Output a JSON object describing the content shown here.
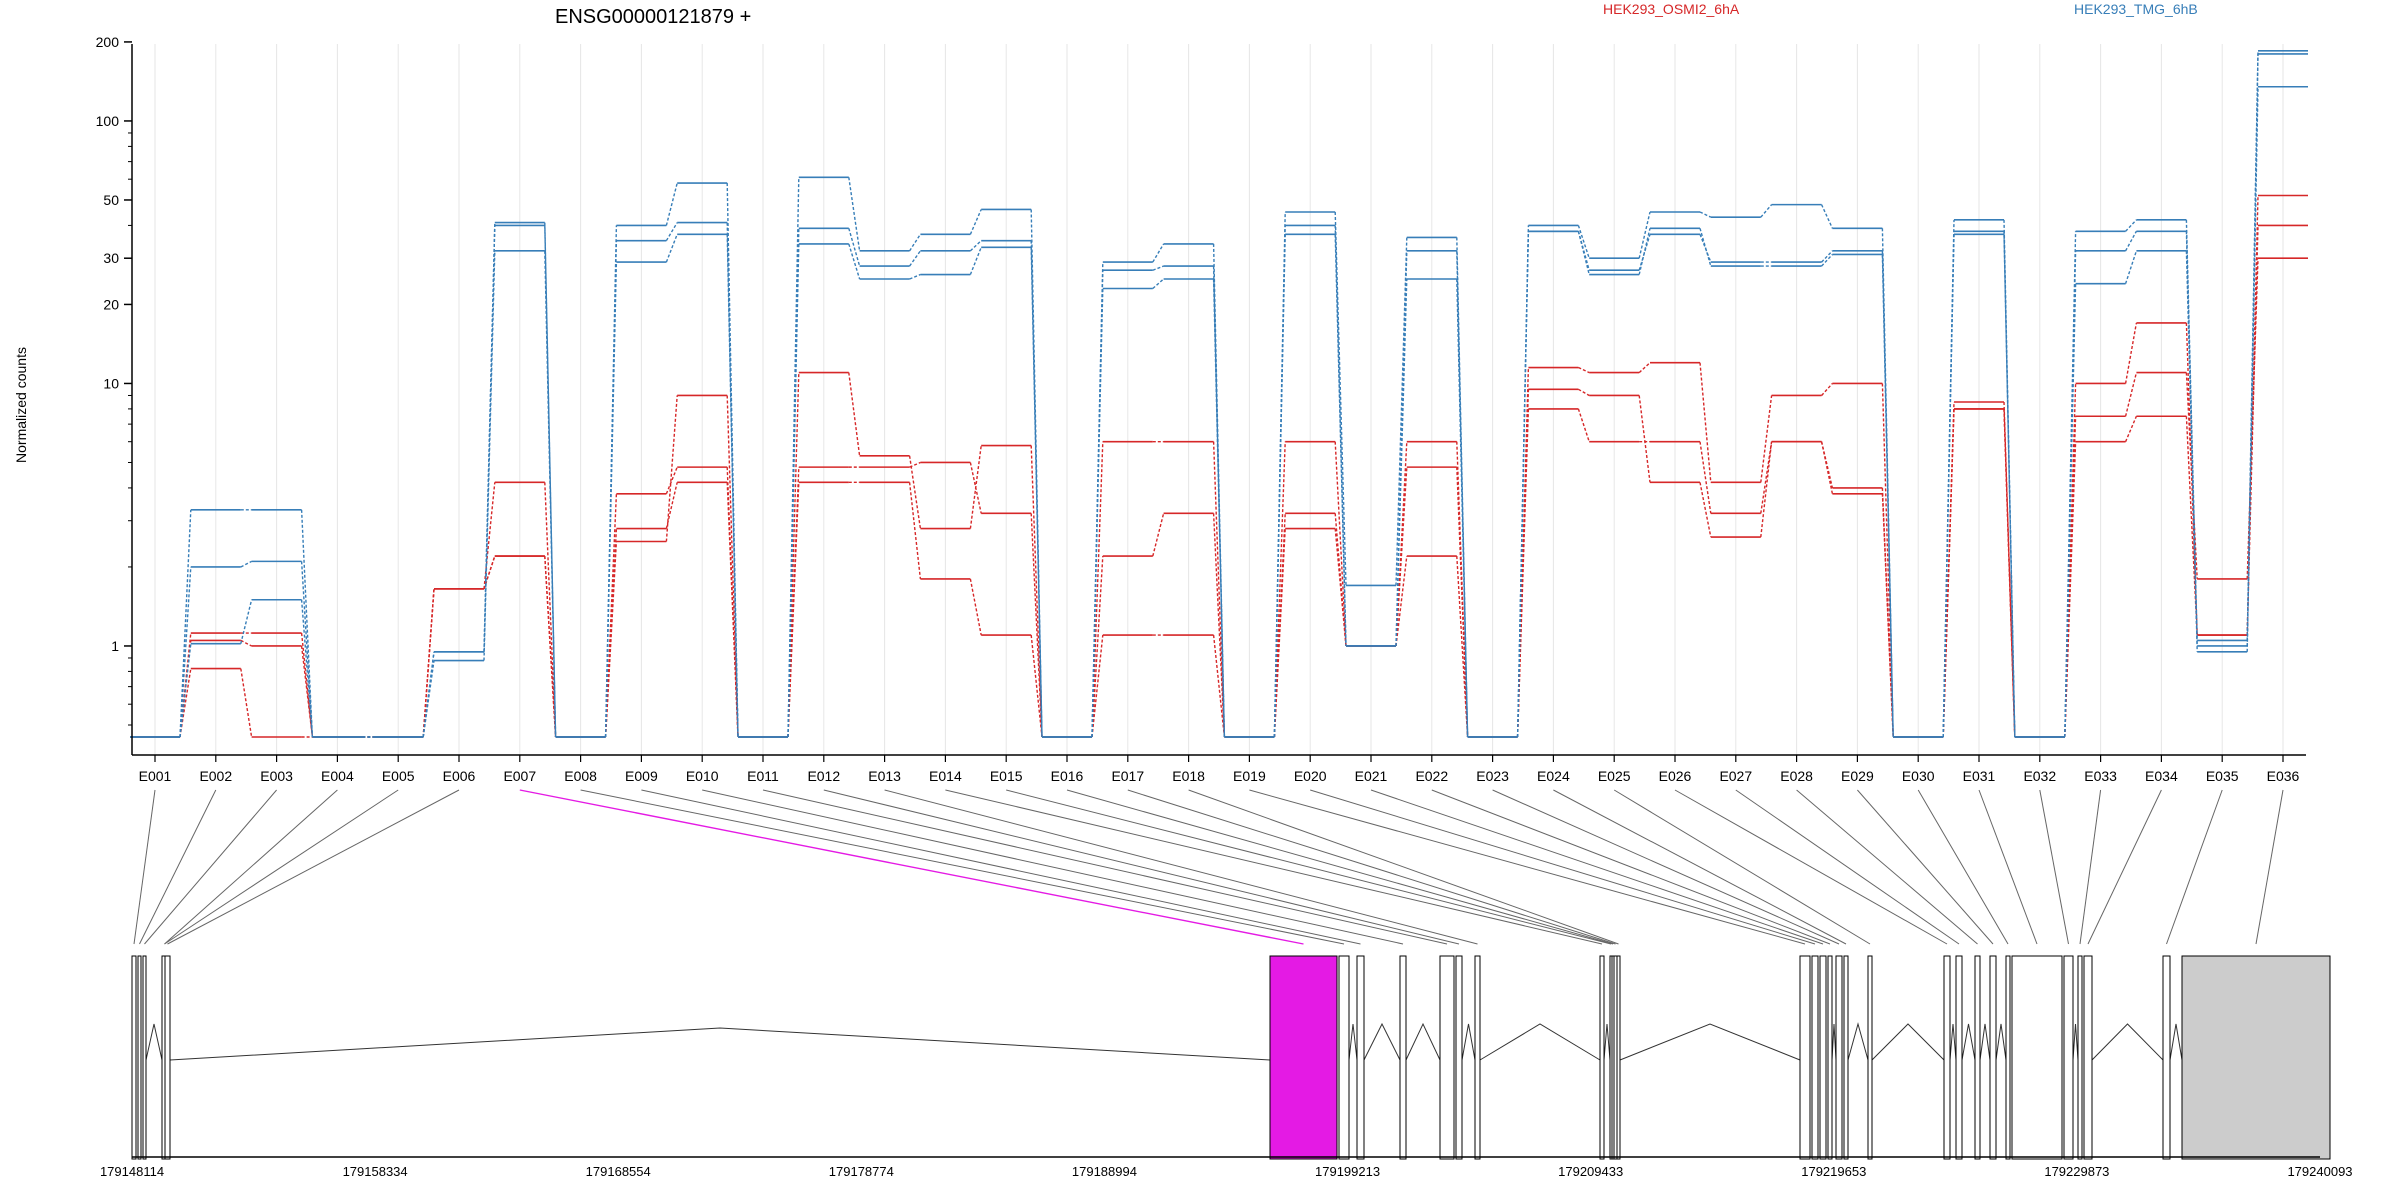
{
  "chart_data": {
    "type": "line",
    "title": "ENSG00000121879 +",
    "ylabel": "Normalized counts",
    "yscale": "log",
    "ylim": [
      0.45,
      230
    ],
    "yticks": [
      1,
      10,
      20,
      30,
      50,
      100,
      200
    ],
    "grid": "vertical",
    "legend": [
      {
        "name": "HEK293_OSMI2_6hA",
        "color": "#d62728"
      },
      {
        "name": "HEK293_TMG_6hB",
        "color": "#377eb8"
      }
    ],
    "categories": [
      "E001",
      "E002",
      "E003",
      "E004",
      "E005",
      "E006",
      "E007",
      "E008",
      "E009",
      "E010",
      "E011",
      "E012",
      "E013",
      "E014",
      "E015",
      "E016",
      "E017",
      "E018",
      "E019",
      "E020",
      "E021",
      "E022",
      "E023",
      "E024",
      "E025",
      "E026",
      "E027",
      "E028",
      "E029",
      "E030",
      "E031",
      "E032",
      "E033",
      "E034",
      "E035",
      "E036"
    ],
    "series": [
      {
        "color": "#d62728",
        "values": [
          0.45,
          0.82,
          0.45,
          0.45,
          0.45,
          1.65,
          2.2,
          0.45,
          2.5,
          9.0,
          0.45,
          11.0,
          5.3,
          2.8,
          5.8,
          0.45,
          6.0,
          6.0,
          0.45,
          6.0,
          1.0,
          6.0,
          0.45,
          11.5,
          11.0,
          12.0,
          4.2,
          9.0,
          10.0,
          0.45,
          8.5,
          0.45,
          10.0,
          17.0,
          1.1,
          52.0
        ]
      },
      {
        "color": "#d62728",
        "values": [
          0.45,
          1.05,
          1.0,
          0.45,
          0.45,
          1.65,
          4.2,
          0.45,
          3.8,
          4.8,
          0.45,
          4.8,
          4.8,
          5.0,
          3.2,
          0.45,
          2.2,
          3.2,
          0.45,
          3.2,
          1.0,
          2.2,
          0.45,
          8.0,
          6.0,
          6.0,
          3.2,
          6.0,
          4.0,
          0.45,
          8.0,
          0.45,
          6.0,
          7.5,
          1.1,
          40.0
        ]
      },
      {
        "color": "#d62728",
        "values": [
          0.45,
          1.12,
          1.12,
          0.45,
          0.45,
          1.65,
          2.2,
          0.45,
          2.8,
          4.2,
          0.45,
          4.2,
          4.2,
          1.8,
          1.1,
          0.45,
          1.1,
          1.1,
          0.45,
          2.8,
          1.0,
          4.8,
          0.45,
          9.5,
          9.0,
          4.2,
          2.6,
          6.0,
          3.8,
          0.45,
          8.0,
          0.45,
          7.5,
          11.0,
          1.8,
          30.0
        ]
      },
      {
        "color": "#377eb8",
        "values": [
          0.45,
          3.3,
          3.3,
          0.45,
          0.45,
          0.95,
          40.0,
          0.45,
          40.0,
          58.0,
          0.45,
          61.0,
          32.0,
          37.0,
          46.0,
          0.45,
          29.0,
          34.0,
          0.45,
          45.0,
          1.7,
          36.0,
          0.45,
          40.0,
          30.0,
          45.0,
          43.0,
          48.0,
          39.0,
          0.45,
          42.0,
          0.45,
          38.0,
          42.0,
          1.05,
          185.0
        ]
      },
      {
        "color": "#377eb8",
        "values": [
          0.45,
          1.02,
          1.5,
          0.45,
          0.45,
          0.88,
          32.0,
          0.45,
          35.0,
          41.0,
          0.45,
          39.0,
          28.0,
          32.0,
          35.0,
          0.45,
          27.0,
          28.0,
          0.45,
          40.0,
          1.0,
          32.0,
          0.45,
          38.0,
          27.0,
          37.0,
          29.0,
          29.0,
          32.0,
          0.45,
          37.0,
          0.45,
          32.0,
          38.0,
          0.95,
          135.0
        ]
      },
      {
        "color": "#377eb8",
        "values": [
          0.45,
          2.0,
          2.1,
          0.45,
          0.45,
          0.95,
          41.0,
          0.45,
          29.0,
          37.0,
          0.45,
          34.0,
          25.0,
          26.0,
          33.0,
          0.45,
          23.0,
          25.0,
          0.45,
          37.0,
          1.0,
          25.0,
          0.45,
          38.0,
          26.0,
          39.0,
          28.0,
          28.0,
          31.0,
          0.45,
          38.0,
          0.45,
          24.0,
          32.0,
          1.0,
          180.0
        ]
      }
    ]
  },
  "genomic_track": {
    "coordinate_labels": [
      "179148114",
      "179158334",
      "179168554",
      "179178774",
      "179188994",
      "179199213",
      "179209433",
      "179219653",
      "179229873",
      "179240093"
    ],
    "highlight_exon": "E007",
    "highlight_color": "#e41ae4",
    "utr_color": "#cccccc"
  }
}
